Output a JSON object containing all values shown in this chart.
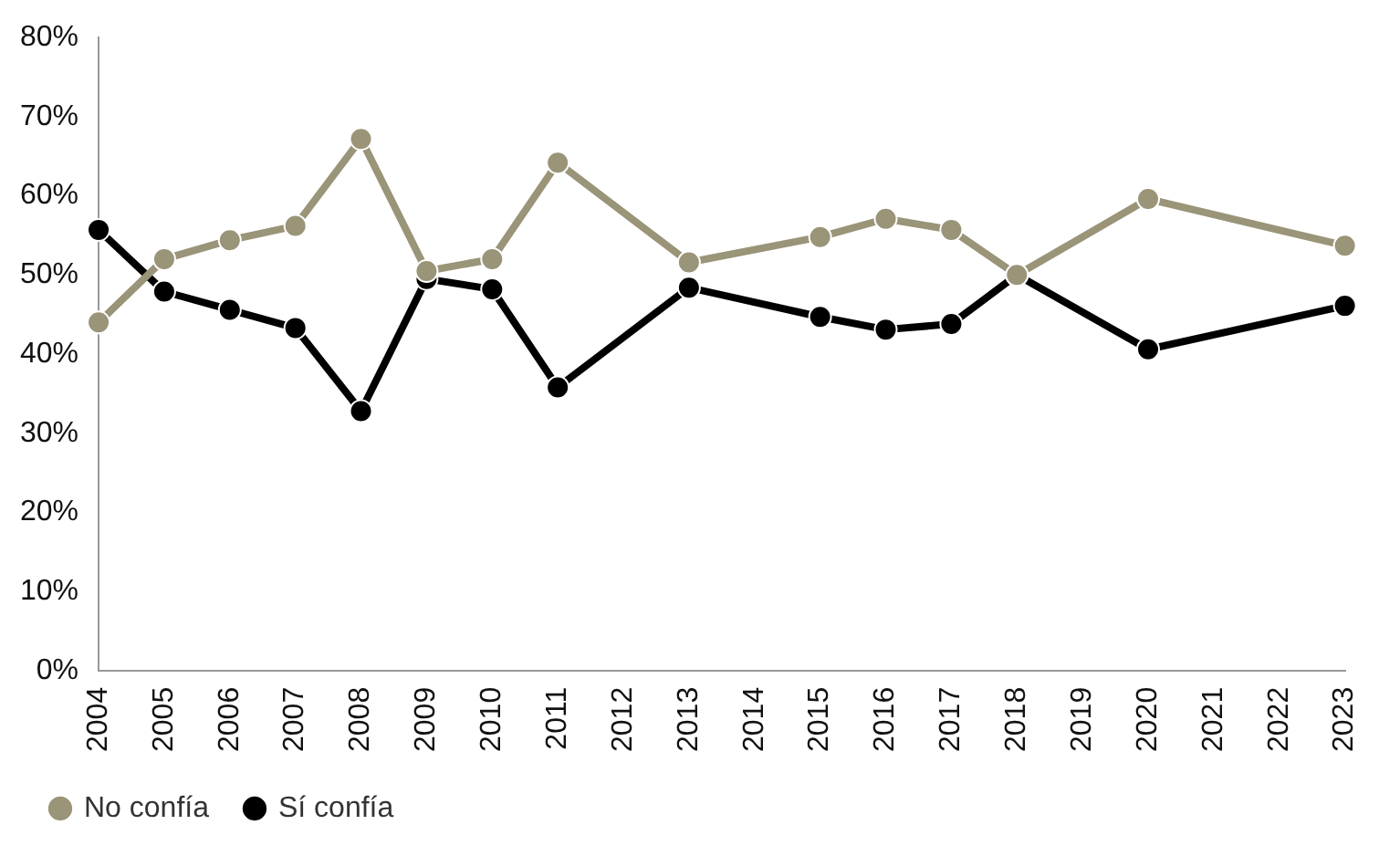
{
  "chart_data": {
    "type": "line",
    "categories": [
      "2004",
      "2005",
      "2006",
      "2007",
      "2008",
      "2009",
      "2010",
      "2011",
      "2012",
      "2013",
      "2014",
      "2015",
      "2016",
      "2017",
      "2018",
      "2019",
      "2020",
      "2021",
      "2022",
      "2023"
    ],
    "series": [
      {
        "name": "No confía",
        "color": "#9a9478",
        "values": [
          44,
          52,
          54.4,
          56.2,
          67.2,
          50.5,
          52,
          64.2,
          null,
          51.6,
          null,
          54.8,
          57.1,
          55.7,
          50,
          null,
          59.6,
          null,
          null,
          53.7
        ]
      },
      {
        "name": "Sí confía",
        "color": "#000000",
        "values": [
          55.7,
          47.9,
          45.6,
          43.3,
          32.8,
          49.5,
          48.2,
          35.8,
          null,
          48.4,
          null,
          44.7,
          43.1,
          43.8,
          50,
          null,
          40.6,
          null,
          null,
          46.1
        ]
      }
    ],
    "ylim": [
      0,
      80
    ],
    "yticks": [
      {
        "value": 0,
        "label": "0%"
      },
      {
        "value": 10,
        "label": "10%"
      },
      {
        "value": 20,
        "label": "20%"
      },
      {
        "value": 30,
        "label": "30%"
      },
      {
        "value": 40,
        "label": "40%"
      },
      {
        "value": 50,
        "label": "50%"
      },
      {
        "value": 60,
        "label": "60%"
      },
      {
        "value": 70,
        "label": "70%"
      },
      {
        "value": 80,
        "label": "80%"
      }
    ],
    "grid": false,
    "legend": "bottom left",
    "marker": "circle",
    "line_style": "solid"
  }
}
